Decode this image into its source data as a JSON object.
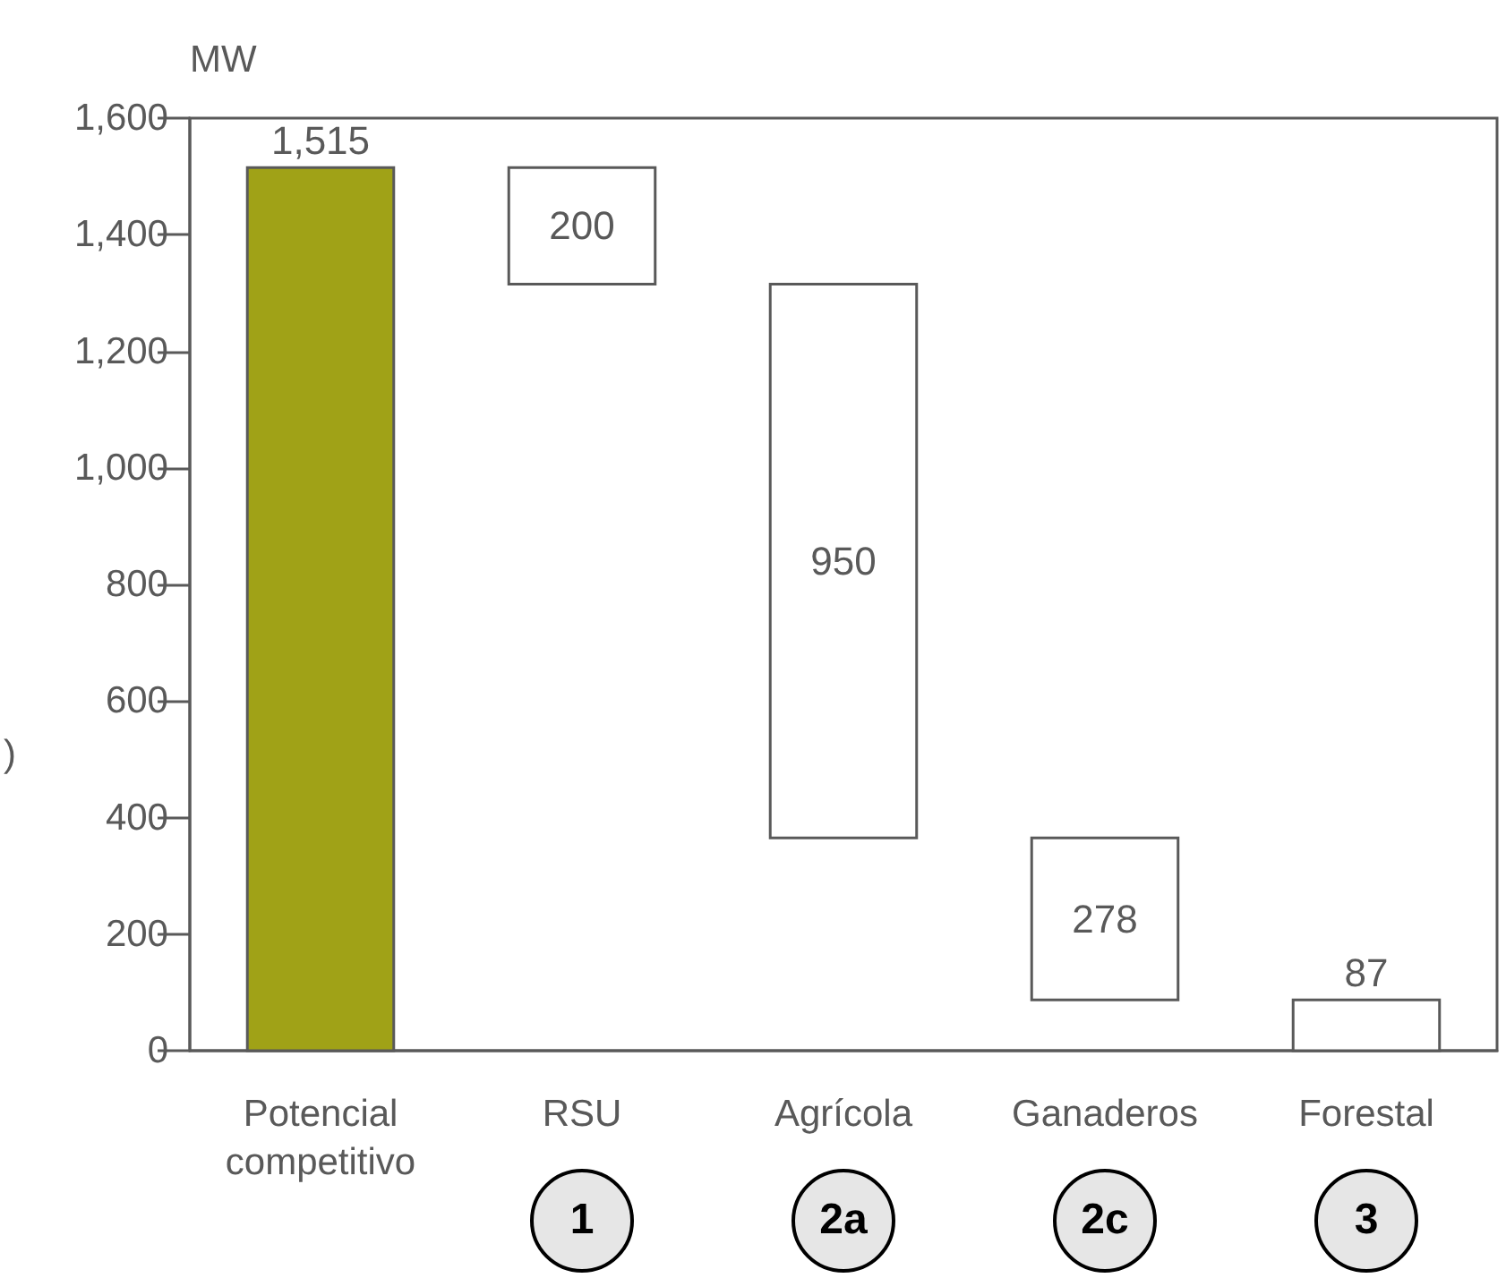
{
  "chart_data": {
    "type": "bar",
    "ylabel": "MW",
    "categories": [
      "Potencial\ncompetitivo",
      "RSU",
      "Agrícola",
      "Ganaderos",
      "Forestal"
    ],
    "values": [
      1515,
      200,
      950,
      278,
      87
    ],
    "base": [
      0,
      1315,
      365,
      87,
      0
    ],
    "colors": [
      "#a0a217",
      "#ffffff",
      "#ffffff",
      "#ffffff",
      "#ffffff"
    ],
    "value_labels": [
      "1,515",
      "200",
      "950",
      "278",
      "87"
    ],
    "ylim": [
      0,
      1600
    ],
    "yticks": [
      {
        "value": 0,
        "label": "0"
      },
      {
        "value": 200,
        "label": "200"
      },
      {
        "value": 400,
        "label": "400"
      },
      {
        "value": 600,
        "label": "600"
      },
      {
        "value": 800,
        "label": "800"
      },
      {
        "value": 1000,
        "label": "1,000"
      },
      {
        "value": 1200,
        "label": "1,200"
      },
      {
        "value": 1400,
        "label": "1,400"
      },
      {
        "value": 1600,
        "label": "1,600"
      }
    ],
    "grid": false,
    "annotations": [
      "1",
      "2a",
      "2c",
      "3",
      ")"
    ]
  }
}
